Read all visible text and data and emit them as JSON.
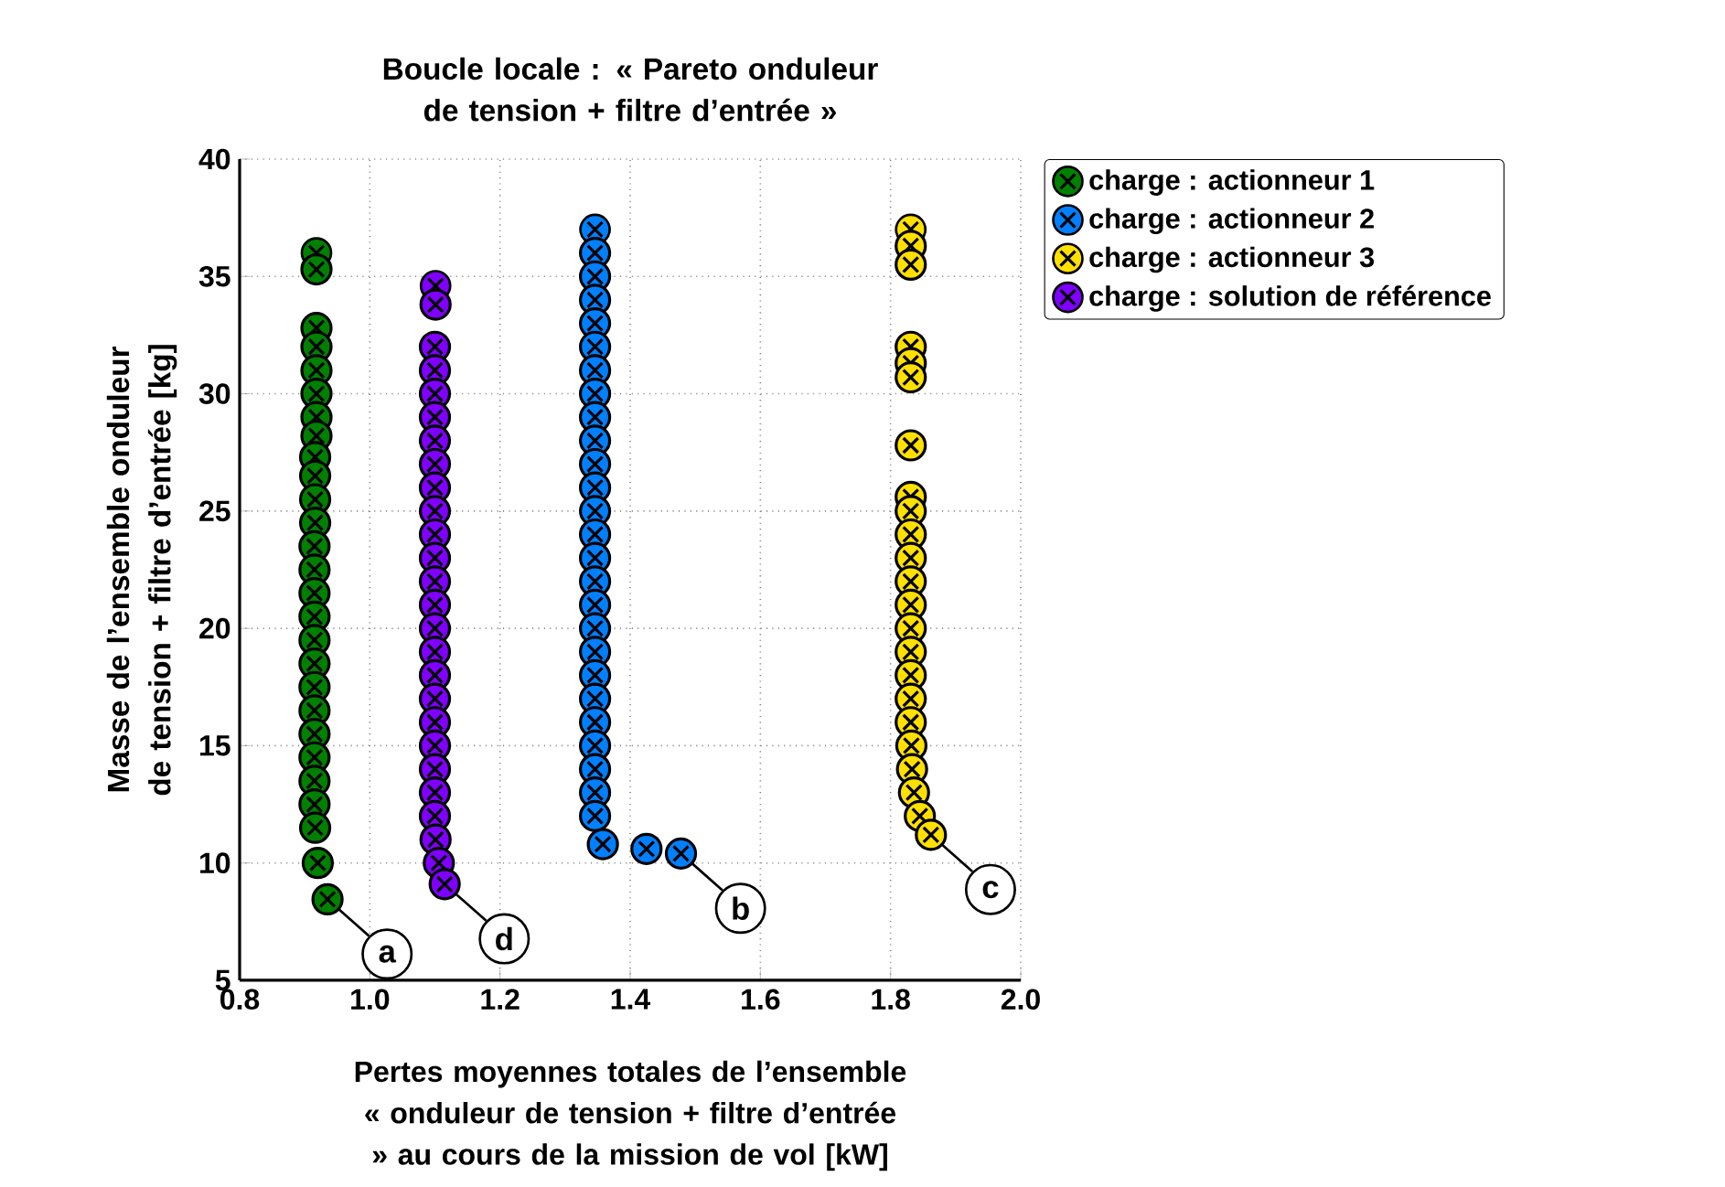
{
  "chart_data": {
    "type": "scatter",
    "title": "Boucle locale : « Pareto onduleur de tension + filtre d’entrée »",
    "xlabel": "Pertes moyennes totales de l’ensemble « onduleur de tension + filtre d’entrée » au cours de la mission de vol [kW]",
    "ylabel": "Masse de l’ensemble onduleur de tension + filtre d’entrée [kg]",
    "xlim": [
      0.8,
      2.0
    ],
    "xticks": [
      {
        "value": 0.8,
        "label": "0.8"
      },
      {
        "value": 1.0,
        "label": "1.0"
      },
      {
        "value": 1.2,
        "label": "1.2"
      },
      {
        "value": 1.4,
        "label": "1.4"
      },
      {
        "value": 1.6,
        "label": "1.6"
      },
      {
        "value": 1.8,
        "label": "1.8"
      },
      {
        "value": 2.0,
        "label": "2.0"
      }
    ],
    "ylim": [
      5,
      40
    ],
    "yticks": [
      5,
      10,
      15,
      20,
      25,
      30,
      35,
      40
    ],
    "grid": true,
    "legend": "right",
    "marker": "circle",
    "series": [
      {
        "name": "charge : actionneur 1",
        "color": "#008000",
        "x": [
          0.918,
          0.918,
          0.918,
          0.918,
          0.918,
          0.918,
          0.918,
          0.918,
          0.916,
          0.916,
          0.916,
          0.916,
          0.915,
          0.915,
          0.915,
          0.915,
          0.915,
          0.915,
          0.915,
          0.915,
          0.915,
          0.915,
          0.915,
          0.915,
          0.916,
          0.92,
          0.935
        ],
        "values": [
          36.0,
          35.3,
          32.8,
          32.0,
          31.0,
          30.0,
          29.0,
          28.2,
          27.3,
          26.5,
          25.5,
          24.5,
          23.5,
          22.5,
          21.5,
          20.5,
          19.5,
          18.5,
          17.5,
          16.5,
          15.5,
          14.5,
          13.5,
          12.5,
          11.5,
          10.0,
          8.45
        ]
      },
      {
        "name": "charge : actionneur 2",
        "color": "#0080ff",
        "x": [
          1.346,
          1.346,
          1.346,
          1.346,
          1.346,
          1.346,
          1.346,
          1.346,
          1.346,
          1.346,
          1.346,
          1.346,
          1.346,
          1.346,
          1.346,
          1.346,
          1.346,
          1.346,
          1.346,
          1.346,
          1.346,
          1.346,
          1.346,
          1.346,
          1.346,
          1.346,
          1.358,
          1.425,
          1.478
        ],
        "values": [
          37.0,
          36.0,
          35.0,
          34.0,
          33.0,
          32.0,
          31.0,
          30.0,
          29.0,
          28.0,
          27.0,
          26.0,
          25.0,
          24.0,
          23.0,
          22.0,
          21.0,
          20.0,
          19.0,
          18.0,
          17.0,
          16.0,
          15.0,
          14.0,
          13.0,
          12.0,
          10.8,
          10.6,
          10.4
        ]
      },
      {
        "name": "charge : actionneur 3",
        "color": "#ffe000",
        "x": [
          1.831,
          1.831,
          1.831,
          1.831,
          1.831,
          1.831,
          1.831,
          1.831,
          1.831,
          1.831,
          1.831,
          1.831,
          1.831,
          1.831,
          1.831,
          1.831,
          1.831,
          1.831,
          1.832,
          1.833,
          1.836,
          1.845,
          1.862
        ],
        "values": [
          37.0,
          36.3,
          35.5,
          32.0,
          31.3,
          30.7,
          27.8,
          25.6,
          25.0,
          24.0,
          23.0,
          22.0,
          21.0,
          20.0,
          19.0,
          18.0,
          17.0,
          16.0,
          15.0,
          14.0,
          13.0,
          12.0,
          11.2
        ]
      },
      {
        "name": "charge : solution de référence",
        "color": "#8000ff",
        "x": [
          1.101,
          1.101,
          1.1,
          1.1,
          1.1,
          1.1,
          1.1,
          1.1,
          1.1,
          1.1,
          1.1,
          1.1,
          1.1,
          1.1,
          1.1,
          1.1,
          1.1,
          1.1,
          1.1,
          1.1,
          1.1,
          1.1,
          1.1,
          1.101,
          1.106,
          1.115
        ],
        "values": [
          34.6,
          33.8,
          32.0,
          31.0,
          30.0,
          29.0,
          28.0,
          27.0,
          26.0,
          25.0,
          24.0,
          23.0,
          22.0,
          21.0,
          20.0,
          19.0,
          18.0,
          17.0,
          16.0,
          15.0,
          14.0,
          13.0,
          12.0,
          11.0,
          10.0,
          9.1
        ]
      }
    ],
    "annotations": [
      {
        "text": "a",
        "x": 0.935,
        "y": 8.45
      },
      {
        "text": "b",
        "x": 1.478,
        "y": 10.4
      },
      {
        "text": "c",
        "x": 1.862,
        "y": 11.2
      },
      {
        "text": "d",
        "x": 1.115,
        "y": 9.1
      }
    ]
  }
}
